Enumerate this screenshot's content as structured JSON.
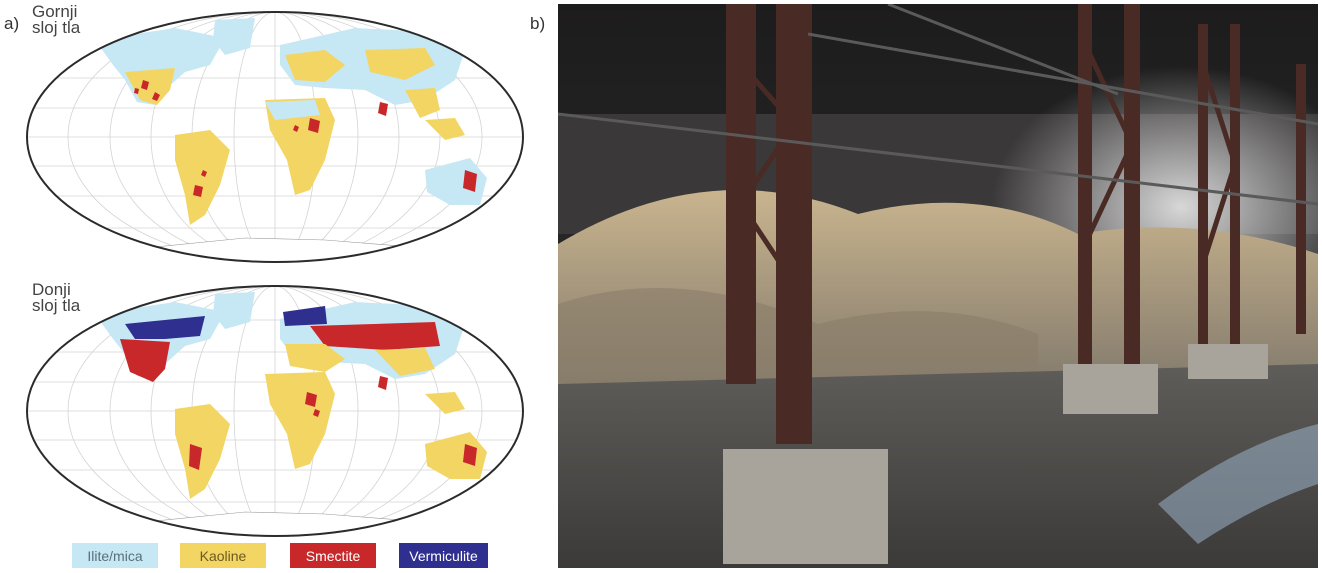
{
  "panel_a": {
    "label": "a)",
    "maps": [
      {
        "title_line1": "Gornji",
        "title_line2": "sloj tla"
      },
      {
        "title_line1": "Donji",
        "title_line2": "sloj tla"
      }
    ]
  },
  "panel_b": {
    "label": "b)"
  },
  "legend": [
    {
      "label": "Ilite/mica",
      "color": "#c6e8f5"
    },
    {
      "label": "Kaoline",
      "color": "#f2d562"
    },
    {
      "label": "Smectite",
      "color": "#c8282a"
    },
    {
      "label": "Vermiculite",
      "color": "#2e2f8f"
    }
  ],
  "colors": {
    "ocean": "#ffffff",
    "graticule": "#d4d4d4",
    "map_border": "#2b2b2b"
  },
  "photo": {
    "subject": "warehouse-interior-with-clay-piles-and-steel-columns"
  }
}
